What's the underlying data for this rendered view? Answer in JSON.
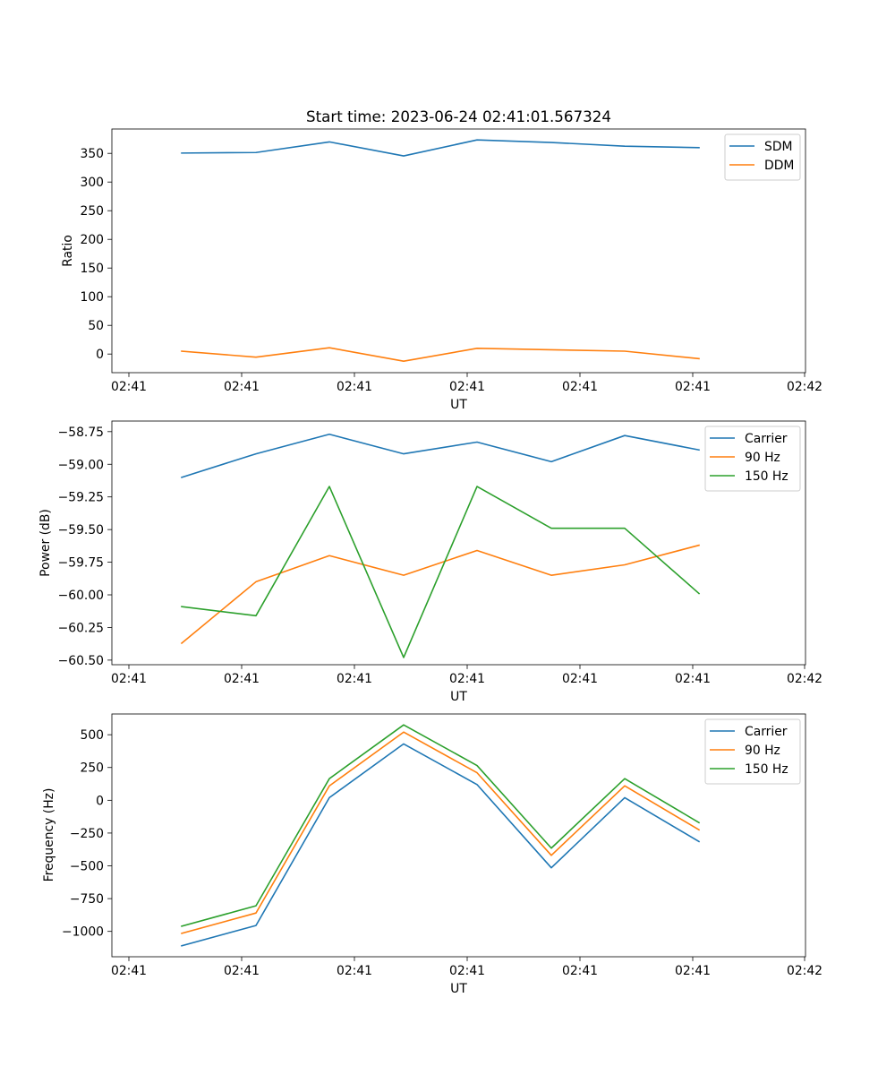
{
  "chart_data": [
    {
      "type": "line",
      "title": "Start time: 2023-06-24 02:41:01.567324",
      "xlabel": "UT",
      "ylabel": "Ratio",
      "x_tick_labels": [
        "02:41",
        "02:41",
        "02:41",
        "02:41",
        "02:41",
        "02:41",
        "02:42"
      ],
      "y_ticks": [
        0,
        50,
        100,
        150,
        200,
        250,
        300,
        350
      ],
      "ylim": [
        -32.5,
        392.5
      ],
      "legend_position": "upper right",
      "series": [
        {
          "name": "SDM",
          "color": "#1f77b4",
          "values": [
            350.5,
            351.5,
            370,
            345.5,
            373.5,
            369,
            362.5,
            360
          ]
        },
        {
          "name": "DDM",
          "color": "#ff7f0e",
          "values": [
            5,
            -5.5,
            11,
            -12.5,
            10,
            7.5,
            5,
            -8
          ]
        }
      ]
    },
    {
      "type": "line",
      "title": "",
      "xlabel": "UT",
      "ylabel": "Power (dB)",
      "x_tick_labels": [
        "02:41",
        "02:41",
        "02:41",
        "02:41",
        "02:41",
        "02:41",
        "02:42"
      ],
      "y_ticks": [
        -60.5,
        -60.25,
        -60.0,
        -59.75,
        -59.5,
        -59.25,
        -59.0,
        -58.75
      ],
      "y_tick_labels": [
        "−60.50",
        "−60.25",
        "−60.00",
        "−59.75",
        "−59.50",
        "−59.25",
        "−59.00",
        "−58.75"
      ],
      "ylim": [
        -60.5351,
        -58.6689
      ],
      "legend_position": "upper right",
      "series": [
        {
          "name": "Carrier",
          "color": "#1f77b4",
          "values": [
            -59.1,
            -58.92,
            -58.77,
            -58.92,
            -58.83,
            -58.98,
            -58.78,
            -58.89
          ]
        },
        {
          "name": "90 Hz",
          "color": "#ff7f0e",
          "values": [
            -60.37,
            -59.9,
            -59.7,
            -59.85,
            -59.66,
            -59.85,
            -59.77,
            -59.62
          ]
        },
        {
          "name": "150 Hz",
          "color": "#2ca02c",
          "values": [
            -60.09,
            -60.16,
            -59.17,
            -60.48,
            -59.17,
            -59.49,
            -59.49,
            -59.99
          ]
        }
      ]
    },
    {
      "type": "line",
      "title": "",
      "xlabel": "UT",
      "ylabel": "Frequency (Hz)",
      "x_tick_labels": [
        "02:41",
        "02:41",
        "02:41",
        "02:41",
        "02:41",
        "02:41",
        "02:42"
      ],
      "y_ticks": [
        -1000,
        -750,
        -500,
        -250,
        0,
        250,
        500
      ],
      "y_tick_labels": [
        "−1000",
        "−750",
        "−500",
        "−250",
        "0",
        "250",
        "500"
      ],
      "ylim": [
        -1193.4,
        658.2
      ],
      "legend_position": "upper right",
      "series": [
        {
          "name": "Carrier",
          "color": "#1f77b4",
          "values": [
            -1110,
            -955,
            20,
            430,
            120,
            -515,
            20,
            -315
          ]
        },
        {
          "name": "90 Hz",
          "color": "#ff7f0e",
          "values": [
            -1015,
            -860,
            110,
            520,
            210,
            -420,
            110,
            -225
          ]
        },
        {
          "name": "150 Hz",
          "color": "#2ca02c",
          "values": [
            -960,
            -805,
            165,
            575,
            265,
            -365,
            165,
            -170
          ]
        }
      ]
    }
  ]
}
